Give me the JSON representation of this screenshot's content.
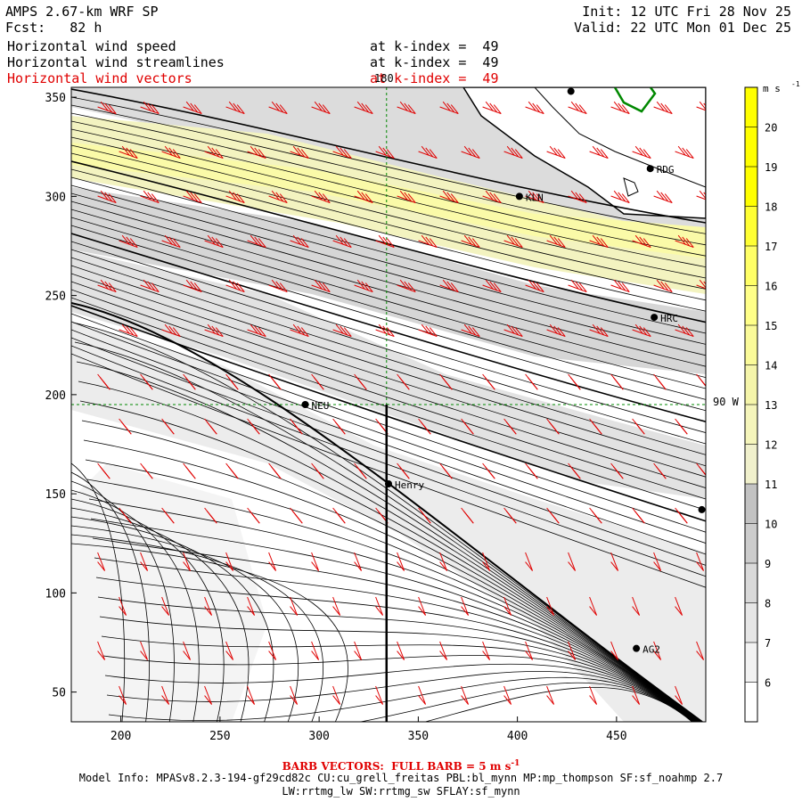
{
  "header": {
    "model": "AMPS 2.67-km WRF SP",
    "fcst_label": "Fcst:",
    "fcst_value": "82 h",
    "init": "Init: 12 UTC Fri 28 Nov 25",
    "valid": "Valid: 22 UTC Mon 01 Dec 25",
    "fields": [
      {
        "name": "Horizontal wind speed",
        "level": "at k-index =  49",
        "color": "#000000"
      },
      {
        "name": "Horizontal wind streamlines",
        "level": "at k-index =  49",
        "color": "#000000"
      },
      {
        "name": "Horizontal wind vectors",
        "level": "at k-index =  49",
        "color": "#e00000"
      }
    ]
  },
  "map": {
    "x_ticks": [
      200,
      250,
      300,
      350,
      400,
      450
    ],
    "y_ticks": [
      50,
      100,
      150,
      200,
      250,
      300,
      350
    ],
    "xlim": [
      175,
      495
    ],
    "ylim": [
      35,
      355
    ],
    "meridian_label": "180",
    "parallel_label": "90 W",
    "meridian_x": 334,
    "parallel_y": 195,
    "stations": [
      {
        "id": "RDG",
        "x": 467,
        "y": 314
      },
      {
        "id": "KLN",
        "x": 401,
        "y": 300
      },
      {
        "id": "HRC",
        "x": 469,
        "y": 239
      },
      {
        "id": "NEU",
        "x": 293,
        "y": 195
      },
      {
        "id": "Henry",
        "x": 335,
        "y": 155
      },
      {
        "id": "AG2",
        "x": 460,
        "y": 72
      },
      {
        "id": "",
        "x": 427,
        "y": 353
      },
      {
        "id": "",
        "x": 493,
        "y": 142
      }
    ]
  },
  "colorbar": {
    "unit": "m s",
    "unit_sup": "-1",
    "labels": [
      "6",
      "7",
      "8",
      "9",
      "10",
      "11",
      "12",
      "13",
      "14",
      "15",
      "16",
      "17",
      "18",
      "19",
      "20"
    ],
    "colors": [
      "#ffffff",
      "#f2f2f2",
      "#e6e6e6",
      "#d9d9d9",
      "#cccccc",
      "#c2c2c2",
      "#f0f0cc",
      "#f5f5bb",
      "#f5f5aa",
      "#fafa99",
      "#ffff88",
      "#ffff66",
      "#ffff33",
      "#ffff00",
      "#ffff00",
      "#ffff00"
    ]
  },
  "footer": {
    "barb_note": "BARB VECTORS:  FULL BARB = 5 m s",
    "barb_sup": "-1",
    "model_info": "Model Info: MPASv8.2.3-194-gf29cd82c CU:cu_grell_freitas PBL:bl_mynn MP:mp_thompson SF:sf_noahmp 2.7",
    "model_info2": "LW:rrtmg_lw SW:rrtmg_sw SFLAY:sf_mynn"
  }
}
